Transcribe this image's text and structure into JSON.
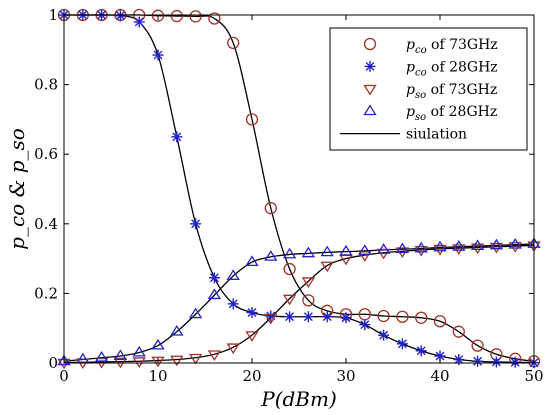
{
  "chart_data": {
    "type": "line",
    "xlabel": "P(dBm)",
    "ylabel": "p_co & p_so",
    "xlim": [
      0,
      50
    ],
    "ylim": [
      0,
      1
    ],
    "xticks": [
      0,
      10,
      20,
      30,
      40,
      50
    ],
    "yticks": [
      0,
      0.2,
      0.4,
      0.6,
      0.8,
      1
    ],
    "xtick_labels": [
      "0",
      "10",
      "20",
      "30",
      "40",
      "50"
    ],
    "ytick_labels": [
      "0",
      "0.2",
      "0.4",
      "0.6",
      "0.8",
      "1"
    ],
    "grid": false,
    "legend_position": "top-right",
    "series": [
      {
        "name": "p_co of 73GHz",
        "legend": {
          "sym": "p",
          "sub": "co",
          "rest": " of 73GHz"
        },
        "marker": "circle",
        "color": "#a0322b",
        "x": [
          0,
          2,
          4,
          6,
          8,
          10,
          12,
          14,
          16,
          18,
          20,
          22,
          24,
          26,
          28,
          30,
          32,
          34,
          36,
          38,
          40,
          42,
          44,
          46,
          48,
          50
        ],
        "values": [
          1,
          1,
          1,
          1,
          1,
          0.998,
          0.997,
          0.996,
          0.99,
          0.92,
          0.7,
          0.445,
          0.27,
          0.18,
          0.15,
          0.14,
          0.14,
          0.135,
          0.133,
          0.13,
          0.12,
          0.09,
          0.05,
          0.025,
          0.012,
          0.005
        ]
      },
      {
        "name": "p_co of 28GHz",
        "legend": {
          "sym": "p",
          "sub": "co",
          "rest": " of 28GHz"
        },
        "marker": "asterisk",
        "color": "#2222cc",
        "x": [
          0,
          2,
          4,
          6,
          8,
          10,
          12,
          14,
          16,
          18,
          20,
          22,
          24,
          26,
          28,
          30,
          32,
          34,
          36,
          38,
          40,
          42,
          44,
          46,
          48,
          50
        ],
        "values": [
          1,
          1,
          1,
          0.998,
          0.98,
          0.885,
          0.65,
          0.4,
          0.245,
          0.17,
          0.145,
          0.135,
          0.133,
          0.133,
          0.133,
          0.13,
          0.11,
          0.08,
          0.055,
          0.035,
          0.02,
          0.01,
          0.005,
          0.003,
          0.002,
          0.001
        ]
      },
      {
        "name": "p_so of 73GHz",
        "legend": {
          "sym": "p",
          "sub": "so",
          "rest": " of 73GHz"
        },
        "marker": "triangle-down",
        "color": "#a0322b",
        "x": [
          0,
          2,
          4,
          6,
          8,
          10,
          12,
          14,
          16,
          18,
          20,
          22,
          24,
          26,
          28,
          30,
          32,
          34,
          36,
          38,
          40,
          42,
          44,
          46,
          48,
          50
        ],
        "values": [
          0.001,
          0.002,
          0.003,
          0.004,
          0.005,
          0.007,
          0.01,
          0.015,
          0.025,
          0.045,
          0.08,
          0.13,
          0.185,
          0.235,
          0.28,
          0.3,
          0.31,
          0.317,
          0.321,
          0.325,
          0.328,
          0.33,
          0.332,
          0.334,
          0.336,
          0.338
        ]
      },
      {
        "name": "p_so of 28GHz",
        "legend": {
          "sym": "p",
          "sub": "so",
          "rest": " of 28GHz"
        },
        "marker": "triangle-up",
        "color": "#2222cc",
        "x": [
          0,
          2,
          4,
          6,
          8,
          10,
          12,
          14,
          16,
          18,
          20,
          22,
          24,
          26,
          28,
          30,
          32,
          34,
          36,
          38,
          40,
          42,
          44,
          46,
          48,
          50
        ],
        "values": [
          0.005,
          0.01,
          0.015,
          0.02,
          0.03,
          0.05,
          0.09,
          0.14,
          0.195,
          0.25,
          0.29,
          0.305,
          0.312,
          0.315,
          0.318,
          0.32,
          0.322,
          0.325,
          0.327,
          0.329,
          0.332,
          0.334,
          0.336,
          0.338,
          0.34,
          0.342
        ]
      },
      {
        "name": "siulation",
        "legend": {
          "text": "siulation"
        },
        "marker": "line",
        "color": "#000000",
        "curves": [
          {
            "x": [
              0,
              2,
              4,
              6,
              8,
              10,
              12,
              14,
              16,
              18,
              20,
              22,
              24,
              26,
              28,
              30,
              32,
              34,
              36,
              38,
              40,
              42,
              44,
              46,
              48,
              50
            ],
            "values": [
              1,
              1,
              1,
              1,
              1,
              0.998,
              0.997,
              0.996,
              0.99,
              0.92,
              0.7,
              0.445,
              0.27,
              0.18,
              0.15,
              0.14,
              0.14,
              0.135,
              0.133,
              0.13,
              0.12,
              0.09,
              0.05,
              0.025,
              0.012,
              0.005
            ]
          },
          {
            "x": [
              0,
              2,
              4,
              6,
              8,
              10,
              12,
              14,
              16,
              18,
              20,
              22,
              24,
              26,
              28,
              30,
              32,
              34,
              36,
              38,
              40,
              42,
              44,
              46,
              48,
              50
            ],
            "values": [
              1,
              1,
              1,
              0.998,
              0.98,
              0.885,
              0.65,
              0.4,
              0.245,
              0.17,
              0.145,
              0.135,
              0.133,
              0.133,
              0.133,
              0.13,
              0.11,
              0.08,
              0.055,
              0.035,
              0.02,
              0.01,
              0.005,
              0.003,
              0.002,
              0.001
            ]
          },
          {
            "x": [
              0,
              2,
              4,
              6,
              8,
              10,
              12,
              14,
              16,
              18,
              20,
              22,
              24,
              26,
              28,
              30,
              32,
              34,
              36,
              38,
              40,
              42,
              44,
              46,
              48,
              50
            ],
            "values": [
              0.001,
              0.002,
              0.003,
              0.004,
              0.005,
              0.007,
              0.01,
              0.015,
              0.025,
              0.045,
              0.08,
              0.13,
              0.185,
              0.235,
              0.28,
              0.3,
              0.31,
              0.317,
              0.321,
              0.325,
              0.328,
              0.33,
              0.332,
              0.334,
              0.336,
              0.338
            ]
          },
          {
            "x": [
              0,
              2,
              4,
              6,
              8,
              10,
              12,
              14,
              16,
              18,
              20,
              22,
              24,
              26,
              28,
              30,
              32,
              34,
              36,
              38,
              40,
              42,
              44,
              46,
              48,
              50
            ],
            "values": [
              0.005,
              0.01,
              0.015,
              0.02,
              0.03,
              0.05,
              0.09,
              0.14,
              0.195,
              0.25,
              0.29,
              0.305,
              0.312,
              0.315,
              0.318,
              0.32,
              0.322,
              0.325,
              0.327,
              0.329,
              0.332,
              0.334,
              0.336,
              0.338,
              0.34,
              0.342
            ]
          }
        ]
      }
    ]
  }
}
